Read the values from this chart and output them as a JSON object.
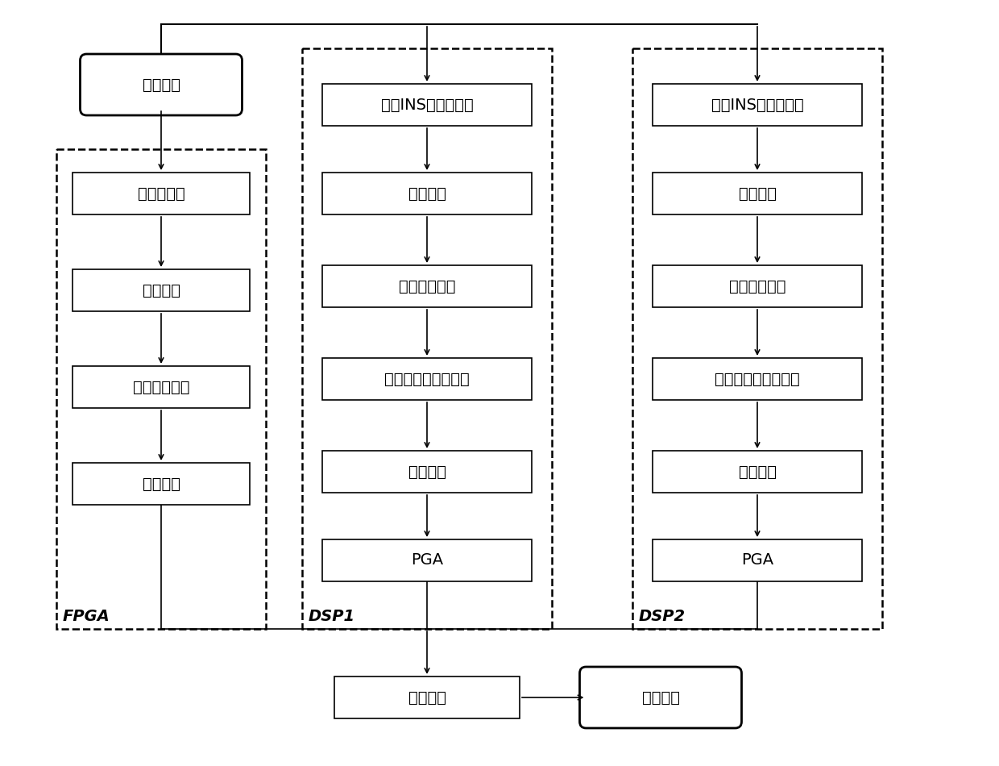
{
  "bg_color": "#ffffff",
  "fpga_label": "FPGA",
  "dsp1_label": "DSP1",
  "dsp2_label": "DSP2",
  "zhongpin_text": "中频回波",
  "fpga_boxes": [
    "数字下变频",
    "距离脉压",
    "方位向预滤波",
    "数据分发"
  ],
  "dsp1_boxes": [
    "基于INS的运动补偿",
    "矩阵转置",
    "距离徙动校正",
    "基于数据的运动补偿",
    "方位压缩",
    "PGA"
  ],
  "dsp2_boxes": [
    "基于INS的运动补偿",
    "矩阵转置",
    "距离徙动校正",
    "基于数据的运动补偿",
    "方位压缩",
    "PGA"
  ],
  "bottom_box": "图像拼接",
  "chenxiang_text": "成像结果",
  "font_size": 14,
  "font_size_label": 14
}
